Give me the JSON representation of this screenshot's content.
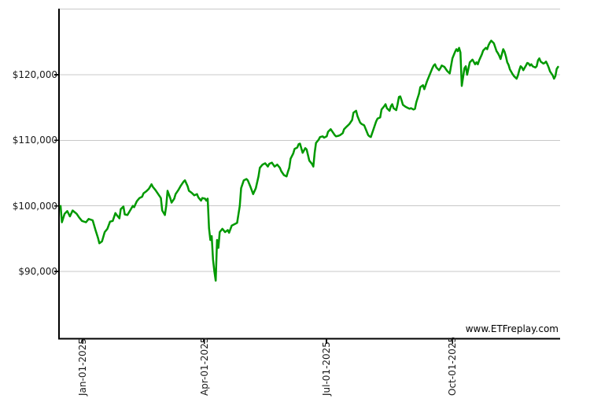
{
  "chart_data": {
    "type": "line",
    "watermark": "www.ETFreplay.com",
    "line_color": "#009900",
    "grid_color": "#c8c8c8",
    "axis_color": "#000000",
    "label_color": "#1a1a1a",
    "grid": true,
    "legend": "none",
    "x_axis": {
      "unit": "days_from_chart_start",
      "range": [
        0,
        373.5
      ],
      "ticks": [
        {
          "label": "Jan-01-2025",
          "day": 16.5
        },
        {
          "label": "Apr-01-2025",
          "day": 107.5
        },
        {
          "label": "Jul-01-2025",
          "day": 198.8
        },
        {
          "label": "Oct-01-2025",
          "day": 293
        }
      ]
    },
    "y_axis": {
      "range": [
        80000,
        130000
      ],
      "gridline_values": [
        90000,
        100000,
        110000,
        120000,
        130000
      ],
      "ticks": [
        {
          "label": "$120,000",
          "value": 120000
        },
        {
          "label": "$110,000",
          "value": 110000
        },
        {
          "label": "$100,000",
          "value": 100000
        },
        {
          "label": "$90,000",
          "value": 90000
        }
      ]
    },
    "points": [
      [
        0,
        100000
      ],
      [
        1,
        97500
      ],
      [
        3,
        98800
      ],
      [
        5,
        99200
      ],
      [
        7,
        98400
      ],
      [
        9,
        99300
      ],
      [
        12,
        98800
      ],
      [
        14,
        98200
      ],
      [
        16,
        97700
      ],
      [
        19,
        97500
      ],
      [
        21,
        98000
      ],
      [
        24,
        97800
      ],
      [
        26,
        96400
      ],
      [
        28,
        95100
      ],
      [
        29,
        94300
      ],
      [
        31,
        94600
      ],
      [
        33,
        96000
      ],
      [
        35,
        96500
      ],
      [
        37,
        97600
      ],
      [
        39,
        97700
      ],
      [
        41,
        98900
      ],
      [
        42,
        98600
      ],
      [
        44,
        98100
      ],
      [
        45,
        99500
      ],
      [
        47,
        99900
      ],
      [
        48,
        98700
      ],
      [
        50,
        98600
      ],
      [
        52,
        99300
      ],
      [
        54,
        100000
      ],
      [
        55,
        99800
      ],
      [
        57,
        100700
      ],
      [
        59,
        101200
      ],
      [
        61,
        101400
      ],
      [
        62,
        101900
      ],
      [
        64,
        102200
      ],
      [
        66,
        102600
      ],
      [
        68,
        103300
      ],
      [
        69,
        102900
      ],
      [
        71,
        102400
      ],
      [
        73,
        101800
      ],
      [
        75,
        101200
      ],
      [
        76,
        99300
      ],
      [
        78,
        98600
      ],
      [
        79,
        100000
      ],
      [
        80,
        102300
      ],
      [
        82,
        101200
      ],
      [
        83,
        100500
      ],
      [
        85,
        101100
      ],
      [
        86,
        101800
      ],
      [
        88,
        102400
      ],
      [
        90,
        103100
      ],
      [
        92,
        103700
      ],
      [
        93,
        103900
      ],
      [
        95,
        103000
      ],
      [
        96,
        102300
      ],
      [
        98,
        102000
      ],
      [
        100,
        101600
      ],
      [
        102,
        101800
      ],
      [
        103,
        101300
      ],
      [
        105,
        100800
      ],
      [
        106,
        101200
      ],
      [
        108,
        101100
      ],
      [
        109,
        100800
      ],
      [
        110,
        101100
      ],
      [
        111,
        96600
      ],
      [
        112,
        94800
      ],
      [
        113,
        95400
      ],
      [
        114,
        91800
      ],
      [
        115,
        90000
      ],
      [
        116,
        88600
      ],
      [
        117,
        94800
      ],
      [
        118,
        93600
      ],
      [
        119,
        96000
      ],
      [
        121,
        96500
      ],
      [
        123,
        96000
      ],
      [
        125,
        96300
      ],
      [
        126,
        95900
      ],
      [
        128,
        97000
      ],
      [
        130,
        97200
      ],
      [
        132,
        97400
      ],
      [
        134,
        100000
      ],
      [
        135,
        102700
      ],
      [
        137,
        103900
      ],
      [
        139,
        104100
      ],
      [
        140,
        103900
      ],
      [
        142,
        102900
      ],
      [
        144,
        101800
      ],
      [
        146,
        102700
      ],
      [
        148,
        104500
      ],
      [
        149,
        105800
      ],
      [
        151,
        106300
      ],
      [
        153,
        106500
      ],
      [
        155,
        106000
      ],
      [
        156,
        106400
      ],
      [
        158,
        106600
      ],
      [
        160,
        106000
      ],
      [
        162,
        106300
      ],
      [
        164,
        105800
      ],
      [
        165,
        105300
      ],
      [
        167,
        104700
      ],
      [
        169,
        104500
      ],
      [
        170,
        105200
      ],
      [
        171,
        105800
      ],
      [
        172,
        107200
      ],
      [
        174,
        108000
      ],
      [
        175,
        108700
      ],
      [
        177,
        108900
      ],
      [
        178,
        109400
      ],
      [
        179,
        109500
      ],
      [
        181,
        108100
      ],
      [
        183,
        108800
      ],
      [
        184,
        108600
      ],
      [
        186,
        106900
      ],
      [
        188,
        106400
      ],
      [
        189,
        106000
      ],
      [
        190,
        108100
      ],
      [
        191,
        109600
      ],
      [
        193,
        110100
      ],
      [
        194,
        110500
      ],
      [
        196,
        110600
      ],
      [
        197,
        110400
      ],
      [
        199,
        110600
      ],
      [
        200,
        111300
      ],
      [
        202,
        111700
      ],
      [
        203,
        111400
      ],
      [
        205,
        110800
      ],
      [
        206,
        110600
      ],
      [
        208,
        110700
      ],
      [
        209,
        110800
      ],
      [
        211,
        111100
      ],
      [
        212,
        111700
      ],
      [
        214,
        112100
      ],
      [
        215,
        112300
      ],
      [
        216,
        112500
      ],
      [
        218,
        113100
      ],
      [
        219,
        114200
      ],
      [
        221,
        114500
      ],
      [
        222,
        113700
      ],
      [
        224,
        112700
      ],
      [
        225,
        112500
      ],
      [
        227,
        112300
      ],
      [
        229,
        111300
      ],
      [
        230,
        110800
      ],
      [
        231,
        110600
      ],
      [
        232,
        110500
      ],
      [
        234,
        111700
      ],
      [
        236,
        112900
      ],
      [
        237,
        113300
      ],
      [
        239,
        113500
      ],
      [
        240,
        114700
      ],
      [
        242,
        115200
      ],
      [
        243,
        115500
      ],
      [
        244,
        114900
      ],
      [
        246,
        114500
      ],
      [
        247,
        115200
      ],
      [
        248,
        115500
      ],
      [
        249,
        114900
      ],
      [
        251,
        114600
      ],
      [
        252,
        115500
      ],
      [
        253,
        116600
      ],
      [
        254,
        116700
      ],
      [
        255,
        116100
      ],
      [
        256,
        115400
      ],
      [
        258,
        115100
      ],
      [
        260,
        114900
      ],
      [
        261,
        114800
      ],
      [
        262,
        114900
      ],
      [
        264,
        114700
      ],
      [
        265,
        114800
      ],
      [
        266,
        115800
      ],
      [
        268,
        117100
      ],
      [
        269,
        118100
      ],
      [
        271,
        118400
      ],
      [
        272,
        117800
      ],
      [
        274,
        119000
      ],
      [
        276,
        120000
      ],
      [
        278,
        121000
      ],
      [
        279,
        121400
      ],
      [
        280,
        121600
      ],
      [
        281,
        121100
      ],
      [
        283,
        120700
      ],
      [
        284,
        121000
      ],
      [
        285,
        121400
      ],
      [
        287,
        121200
      ],
      [
        289,
        120600
      ],
      [
        290,
        120400
      ],
      [
        291,
        120200
      ],
      [
        293,
        122500
      ],
      [
        295,
        123500
      ],
      [
        296,
        123900
      ],
      [
        297,
        123600
      ],
      [
        298,
        124100
      ],
      [
        299,
        123400
      ],
      [
        300,
        118300
      ],
      [
        302,
        121000
      ],
      [
        303,
        121300
      ],
      [
        304,
        120000
      ],
      [
        306,
        121900
      ],
      [
        308,
        122300
      ],
      [
        310,
        121600
      ],
      [
        311,
        121900
      ],
      [
        312,
        121600
      ],
      [
        313,
        122200
      ],
      [
        315,
        123100
      ],
      [
        316,
        123700
      ],
      [
        318,
        124100
      ],
      [
        319,
        123900
      ],
      [
        320,
        124500
      ],
      [
        321,
        124900
      ],
      [
        322,
        125200
      ],
      [
        324,
        124800
      ],
      [
        325,
        124200
      ],
      [
        326,
        123600
      ],
      [
        327,
        123300
      ],
      [
        328,
        122900
      ],
      [
        329,
        122400
      ],
      [
        331,
        123900
      ],
      [
        332,
        123500
      ],
      [
        333,
        122800
      ],
      [
        334,
        121900
      ],
      [
        335,
        121500
      ],
      [
        336,
        120800
      ],
      [
        338,
        120100
      ],
      [
        339,
        119800
      ],
      [
        341,
        119400
      ],
      [
        342,
        119900
      ],
      [
        343,
        120700
      ],
      [
        344,
        121300
      ],
      [
        345,
        121100
      ],
      [
        346,
        120700
      ],
      [
        348,
        121400
      ],
      [
        349,
        121800
      ],
      [
        350,
        121700
      ],
      [
        351,
        121400
      ],
      [
        352,
        121600
      ],
      [
        353,
        121300
      ],
      [
        355,
        121100
      ],
      [
        356,
        121300
      ],
      [
        357,
        122200
      ],
      [
        358,
        122500
      ],
      [
        359,
        122000
      ],
      [
        361,
        121700
      ],
      [
        362,
        121800
      ],
      [
        363,
        122000
      ],
      [
        364,
        121600
      ],
      [
        365,
        121100
      ],
      [
        366,
        120500
      ],
      [
        368,
        119900
      ],
      [
        369,
        119400
      ],
      [
        370,
        119800
      ],
      [
        371,
        120900
      ],
      [
        372,
        121200
      ]
    ]
  }
}
